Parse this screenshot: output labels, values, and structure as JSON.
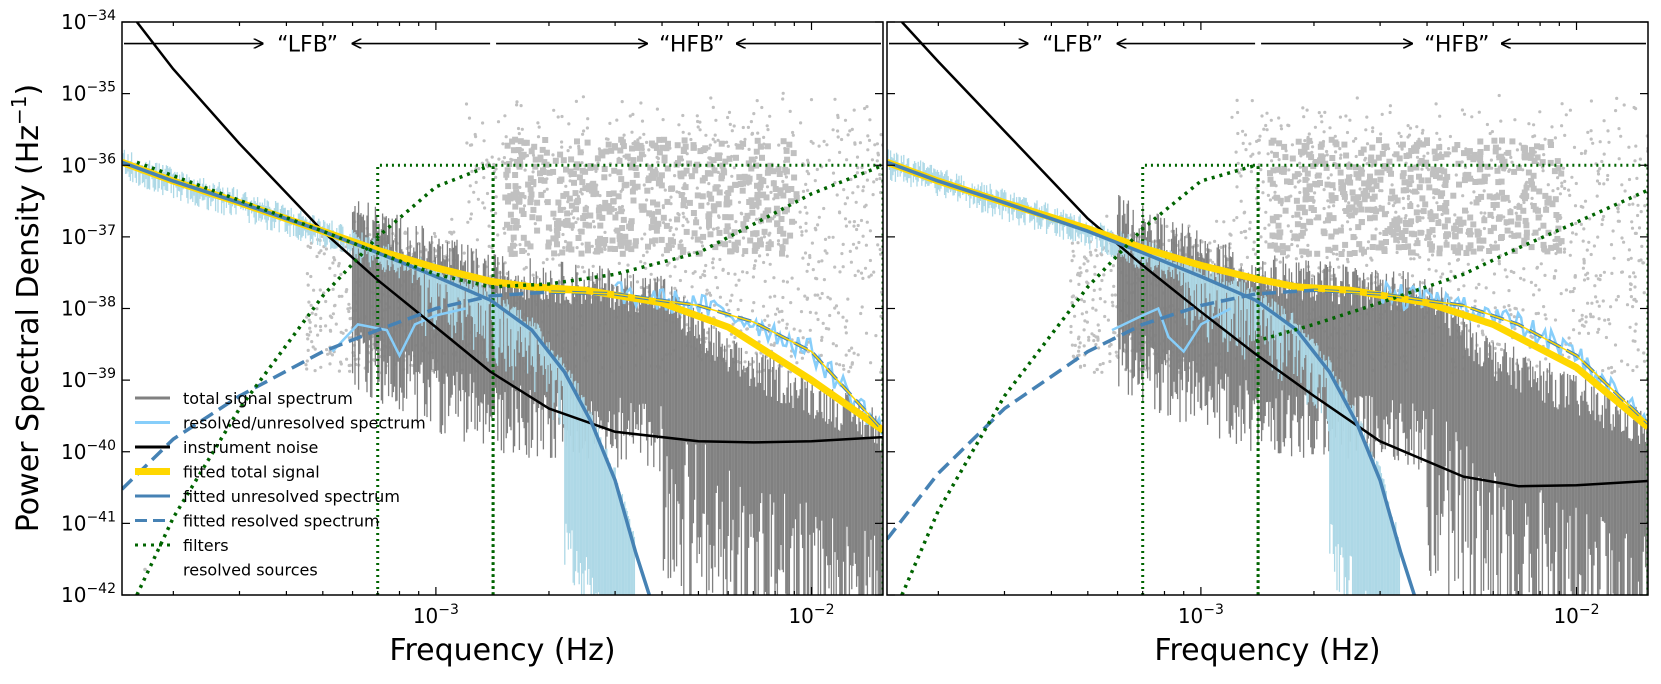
{
  "figure": {
    "ylabel": "Power Spectral Density (Hz",
    "ylabel_exp": "−1",
    "ylabel_close": ")"
  },
  "legend": [
    {
      "key": "total",
      "label": "total signal spectrum",
      "color": "#808080",
      "style": "solid"
    },
    {
      "key": "resolved_unresolved",
      "label": "resolved/unresolved spectrum",
      "color": "#87cefa",
      "style": "solid"
    },
    {
      "key": "noise",
      "label": "instrument noise",
      "color": "#000000",
      "style": "solid"
    },
    {
      "key": "fit_total",
      "label": "fitted total signal",
      "color": "#ffd700",
      "style": "thick"
    },
    {
      "key": "fit_unresolved",
      "label": "fitted unresolved spectrum",
      "color": "#4682b4",
      "style": "solid"
    },
    {
      "key": "fit_resolved",
      "label": "fitted resolved spectrum",
      "color": "#4682b4",
      "style": "dashed"
    },
    {
      "key": "filters",
      "label": "filters",
      "color": "#006400",
      "style": "dotted"
    },
    {
      "key": "sources",
      "label": "resolved sources",
      "color": "#c0c0c0",
      "style": "dots"
    }
  ],
  "chart_data": [
    {
      "type": "line",
      "panel": "left",
      "xlabel": "Frequency (Hz)",
      "ylabel": "Power Spectral Density (Hz^-1)",
      "x_scale": "log",
      "y_scale": "log",
      "xlim": [
        0.000146,
        0.0155
      ],
      "ylim": [
        1e-42,
        1e-34
      ],
      "x_ticks": [
        {
          "base": "10",
          "exp": "−3",
          "value": 0.001
        },
        {
          "base": "10",
          "exp": "−2",
          "value": 0.01
        }
      ],
      "y_ticks": [
        {
          "base": "10",
          "exp": "−34",
          "value": 1e-34
        },
        {
          "base": "10",
          "exp": "−35",
          "value": 1e-35
        },
        {
          "base": "10",
          "exp": "−36",
          "value": 1e-36
        },
        {
          "base": "10",
          "exp": "−37",
          "value": 1e-37
        },
        {
          "base": "10",
          "exp": "−38",
          "value": 1e-38
        },
        {
          "base": "10",
          "exp": "−39",
          "value": 1e-39
        },
        {
          "base": "10",
          "exp": "−40",
          "value": 1e-40
        },
        {
          "base": "10",
          "exp": "−41",
          "value": 1e-41
        },
        {
          "base": "10",
          "exp": "−42",
          "value": 1e-42
        }
      ],
      "bands": {
        "lfb_label": "“LFB”",
        "hfb_label": "“HFB”",
        "lfb_range": [
          0.000146,
          0.00142
        ],
        "hfb_range": [
          0.00142,
          0.0155
        ],
        "arrow_level": 5e-35
      },
      "series": [
        {
          "name": "instrument noise",
          "color": "#000000",
          "x": [
            0.00016,
            0.0002,
            0.0003,
            0.0005,
            0.0007,
            0.001,
            0.0014,
            0.002,
            0.003,
            0.005,
            0.007,
            0.01,
            0.0155
          ],
          "y": [
            1e-34,
            2.2e-35,
            2e-36,
            1.2e-37,
            2.5e-38,
            5.5e-39,
            1.3e-39,
            4e-40,
            1.9e-40,
            1.4e-40,
            1.35e-40,
            1.4e-40,
            1.6e-40
          ]
        },
        {
          "name": "fitted total signal",
          "color": "#ffd700",
          "x": [
            0.000146,
            0.0002,
            0.0003,
            0.0005,
            0.0007,
            0.001,
            0.0014,
            0.0018,
            0.0025,
            0.004,
            0.006,
            0.01,
            0.0155
          ],
          "y": [
            1.1e-36,
            6e-37,
            3e-37,
            1.2e-37,
            6.5e-38,
            3.7e-38,
            2.4e-38,
            2e-38,
            1.8e-38,
            1.2e-38,
            5.5e-39,
            1e-39,
            2e-40
          ]
        },
        {
          "name": "fitted unresolved spectrum",
          "color": "#4682b4",
          "x": [
            0.000146,
            0.0002,
            0.0003,
            0.0005,
            0.0007,
            0.001,
            0.0014,
            0.0018,
            0.0022,
            0.0026,
            0.003,
            0.0034,
            0.0037
          ],
          "y": [
            1.1e-36,
            6e-37,
            3e-37,
            1.2e-37,
            6e-38,
            2.8e-38,
            1.3e-38,
            5e-39,
            1.3e-39,
            2.5e-40,
            4e-41,
            4e-42,
            1e-42
          ]
        },
        {
          "name": "fitted resolved spectrum",
          "color": "#4682b4",
          "dash": true,
          "x": [
            0.000146,
            0.0002,
            0.0003,
            0.0005,
            0.0007,
            0.001,
            0.0014,
            0.002,
            0.003,
            0.005,
            0.007,
            0.01,
            0.0155
          ],
          "y": [
            3e-41,
            1.5e-40,
            6e-40,
            2.5e-39,
            5e-39,
            1e-38,
            1.5e-38,
            1.7e-38,
            1.6e-38,
            1.1e-38,
            6.5e-39,
            2.5e-39,
            2e-40
          ]
        },
        {
          "name": "filters (low-pass)",
          "color": "#006400",
          "dotted": true,
          "x": [
            0.00016,
            0.0002,
            0.0003,
            0.0005,
            0.0007,
            0.001,
            0.0014
          ],
          "y": [
            1e-42,
            1.2e-41,
            4e-40,
            1.5e-38,
            1e-37,
            5e-37,
            1e-36
          ]
        },
        {
          "name": "filters (high-pass)",
          "color": "#006400",
          "dotted": true,
          "x": [
            0.00016,
            0.0005,
            0.0007,
            0.001,
            0.0014,
            0.002,
            0.003,
            0.005,
            0.007,
            0.01,
            0.0155
          ],
          "y": [
            1.1e-36,
            1.2e-37,
            6e-38,
            3e-38,
            2e-38,
            2.2e-38,
            3e-38,
            6e-38,
            1.5e-37,
            4e-37,
            1e-36
          ]
        }
      ],
      "filter_boxes": [
        {
          "x0": 0.0007,
          "x1": 0.00142,
          "y0": 1e-42,
          "y1": 1e-36
        },
        {
          "x0": 0.00142,
          "x1": 0.0155,
          "y0": 1e-42,
          "y1": 1e-36
        }
      ],
      "total_spectrum_envelope": [
        {
          "x": 0.0006,
          "y": 1e-37
        },
        {
          "x": 0.001,
          "y": 3e-38
        },
        {
          "x": 0.0014,
          "y": 1.5e-38
        },
        {
          "x": 0.004,
          "y": 8e-39
        },
        {
          "x": 0.006,
          "y": 1e-39
        },
        {
          "x": 0.01,
          "y": 3e-40
        },
        {
          "x": 0.0155,
          "y": 1e-40
        }
      ]
    },
    {
      "type": "line",
      "panel": "right",
      "xlabel": "Frequency (Hz)",
      "x_scale": "log",
      "y_scale": "log",
      "xlim": [
        0.000146,
        0.0155
      ],
      "ylim": [
        1e-42,
        1e-34
      ],
      "x_ticks": [
        {
          "base": "10",
          "exp": "−3",
          "value": 0.001
        },
        {
          "base": "10",
          "exp": "−2",
          "value": 0.01
        }
      ],
      "bands": {
        "lfb_label": "“LFB”",
        "hfb_label": "“HFB”",
        "lfb_range": [
          0.000146,
          0.00142
        ],
        "hfb_range": [
          0.00142,
          0.0155
        ],
        "arrow_level": 5e-35
      },
      "series": [
        {
          "name": "instrument noise",
          "color": "#000000",
          "x": [
            0.00016,
            0.0002,
            0.0003,
            0.0005,
            0.0007,
            0.001,
            0.0014,
            0.002,
            0.003,
            0.005,
            0.007,
            0.01,
            0.0155
          ],
          "y": [
            1e-34,
            2.8e-35,
            3e-36,
            1.8e-37,
            4e-38,
            9e-39,
            2.3e-39,
            6e-40,
            1.4e-40,
            4.5e-41,
            3.3e-41,
            3.4e-41,
            3.9e-41
          ]
        },
        {
          "name": "fitted total signal",
          "color": "#ffd700",
          "x": [
            0.000146,
            0.0002,
            0.0003,
            0.0005,
            0.0007,
            0.001,
            0.0014,
            0.0018,
            0.0025,
            0.004,
            0.006,
            0.01,
            0.0155
          ],
          "y": [
            1.1e-36,
            6e-37,
            3e-37,
            1.3e-37,
            7e-38,
            4e-38,
            2.6e-38,
            2e-38,
            1.8e-38,
            1.2e-38,
            6e-39,
            1.5e-39,
            2.2e-40
          ]
        },
        {
          "name": "fitted unresolved spectrum",
          "color": "#4682b4",
          "x": [
            0.000146,
            0.0002,
            0.0003,
            0.0005,
            0.0007,
            0.001,
            0.0014,
            0.0018,
            0.0022,
            0.0026,
            0.003,
            0.0034,
            0.0037
          ],
          "y": [
            1.1e-36,
            6e-37,
            3e-37,
            1.2e-37,
            6e-38,
            2.8e-38,
            1.3e-38,
            5e-39,
            1.3e-39,
            2.5e-40,
            4e-41,
            4e-42,
            1e-42
          ]
        },
        {
          "name": "fitted resolved spectrum",
          "color": "#4682b4",
          "dash": true,
          "x": [
            0.000146,
            0.0002,
            0.0003,
            0.0005,
            0.0007,
            0.001,
            0.0014,
            0.002,
            0.003,
            0.005,
            0.007,
            0.01,
            0.0155
          ],
          "y": [
            6e-42,
            5e-41,
            4e-40,
            2.5e-39,
            6e-39,
            1.1e-38,
            1.6e-38,
            1.8e-38,
            1.6e-38,
            1.1e-38,
            6e-39,
            2.2e-39,
            2.5e-40
          ]
        },
        {
          "name": "filters (low-pass)",
          "color": "#006400",
          "dotted": true,
          "x": [
            0.00016,
            0.0002,
            0.0003,
            0.0005,
            0.0007,
            0.001,
            0.0014
          ],
          "y": [
            1e-42,
            1.5e-41,
            6e-40,
            2e-38,
            1.3e-37,
            6e-37,
            1e-36
          ]
        },
        {
          "name": "filters (high-pass)",
          "color": "#006400",
          "dotted": true,
          "x": [
            0.0014,
            0.002,
            0.003,
            0.005,
            0.007,
            0.01,
            0.0155
          ],
          "y": [
            3.5e-39,
            6e-39,
            1.2e-38,
            3e-38,
            7e-38,
            1.6e-37,
            4.5e-37
          ]
        }
      ],
      "filter_boxes": [
        {
          "x0": 0.0007,
          "x1": 0.00142,
          "y0": 1e-42,
          "y1": 1e-36
        },
        {
          "x0": 0.00142,
          "x1": 0.0155,
          "y0": 1e-42,
          "y1": 1e-36
        }
      ],
      "total_spectrum_envelope": [
        {
          "x": 0.0006,
          "y": 1e-37
        },
        {
          "x": 0.001,
          "y": 3e-38
        },
        {
          "x": 0.0014,
          "y": 1.5e-38
        },
        {
          "x": 0.004,
          "y": 8e-39
        },
        {
          "x": 0.006,
          "y": 1e-39
        },
        {
          "x": 0.01,
          "y": 3e-40
        },
        {
          "x": 0.0155,
          "y": 1e-40
        }
      ]
    }
  ]
}
